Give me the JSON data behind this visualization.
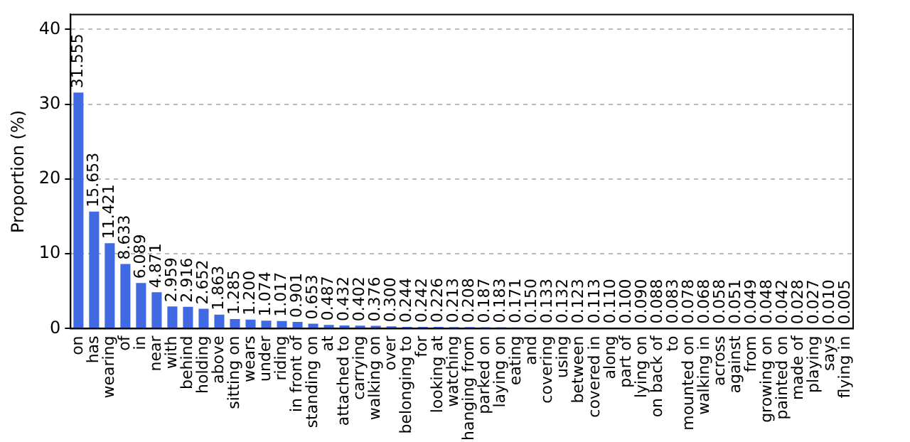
{
  "chart_data": {
    "type": "bar",
    "ylabel": "Proportion (%)",
    "categories": [
      "on",
      "has",
      "wearing",
      "of",
      "in",
      "near",
      "with",
      "behind",
      "holding",
      "above",
      "sitting on",
      "wears",
      "under",
      "riding",
      "in front of",
      "standing on",
      "at",
      "attached to",
      "carrying",
      "walking on",
      "over",
      "belonging to",
      "for",
      "looking at",
      "watching",
      "hanging from",
      "parked on",
      "laying on",
      "eating",
      "and",
      "covering",
      "using",
      "between",
      "covered in",
      "along",
      "part of",
      "lying on",
      "on back of",
      "to",
      "mounted on",
      "walking in",
      "across",
      "against",
      "from",
      "growing on",
      "painted on",
      "made of",
      "playing",
      "says",
      "flying in"
    ],
    "values": [
      31.555,
      15.653,
      11.421,
      8.633,
      6.089,
      4.871,
      2.959,
      2.916,
      2.652,
      1.863,
      1.285,
      1.2,
      1.074,
      1.017,
      0.901,
      0.653,
      0.487,
      0.432,
      0.402,
      0.376,
      0.3,
      0.244,
      0.242,
      0.226,
      0.213,
      0.208,
      0.187,
      0.183,
      0.171,
      0.15,
      0.133,
      0.132,
      0.123,
      0.113,
      0.11,
      0.1,
      0.09,
      0.088,
      0.083,
      0.078,
      0.068,
      0.058,
      0.051,
      0.049,
      0.048,
      0.042,
      0.028,
      0.027,
      0.01,
      0.005
    ],
    "color": "#4169e1",
    "ylim": [
      0,
      42
    ],
    "yticks": [
      0,
      10,
      20,
      30,
      40
    ],
    "grid": "y",
    "value_labels": [
      "31.555",
      "15.653",
      "11.421",
      "8.633",
      "6.089",
      "4.871",
      "2.959",
      "2.916",
      "2.652",
      "1.863",
      "1.285",
      "1.200",
      "1.074",
      "1.017",
      "0.901",
      "0.653",
      "0.487",
      "0.432",
      "0.402",
      "0.376",
      "0.300",
      "0.244",
      "0.242",
      "0.226",
      "0.213",
      "0.208",
      "0.187",
      "0.183",
      "0.171",
      "0.150",
      "0.133",
      "0.132",
      "0.123",
      "0.113",
      "0.110",
      "0.100",
      "0.090",
      "0.088",
      "0.083",
      "0.078",
      "0.068",
      "0.058",
      "0.051",
      "0.049",
      "0.048",
      "0.042",
      "0.028",
      "0.027",
      "0.010",
      "0.005"
    ]
  }
}
